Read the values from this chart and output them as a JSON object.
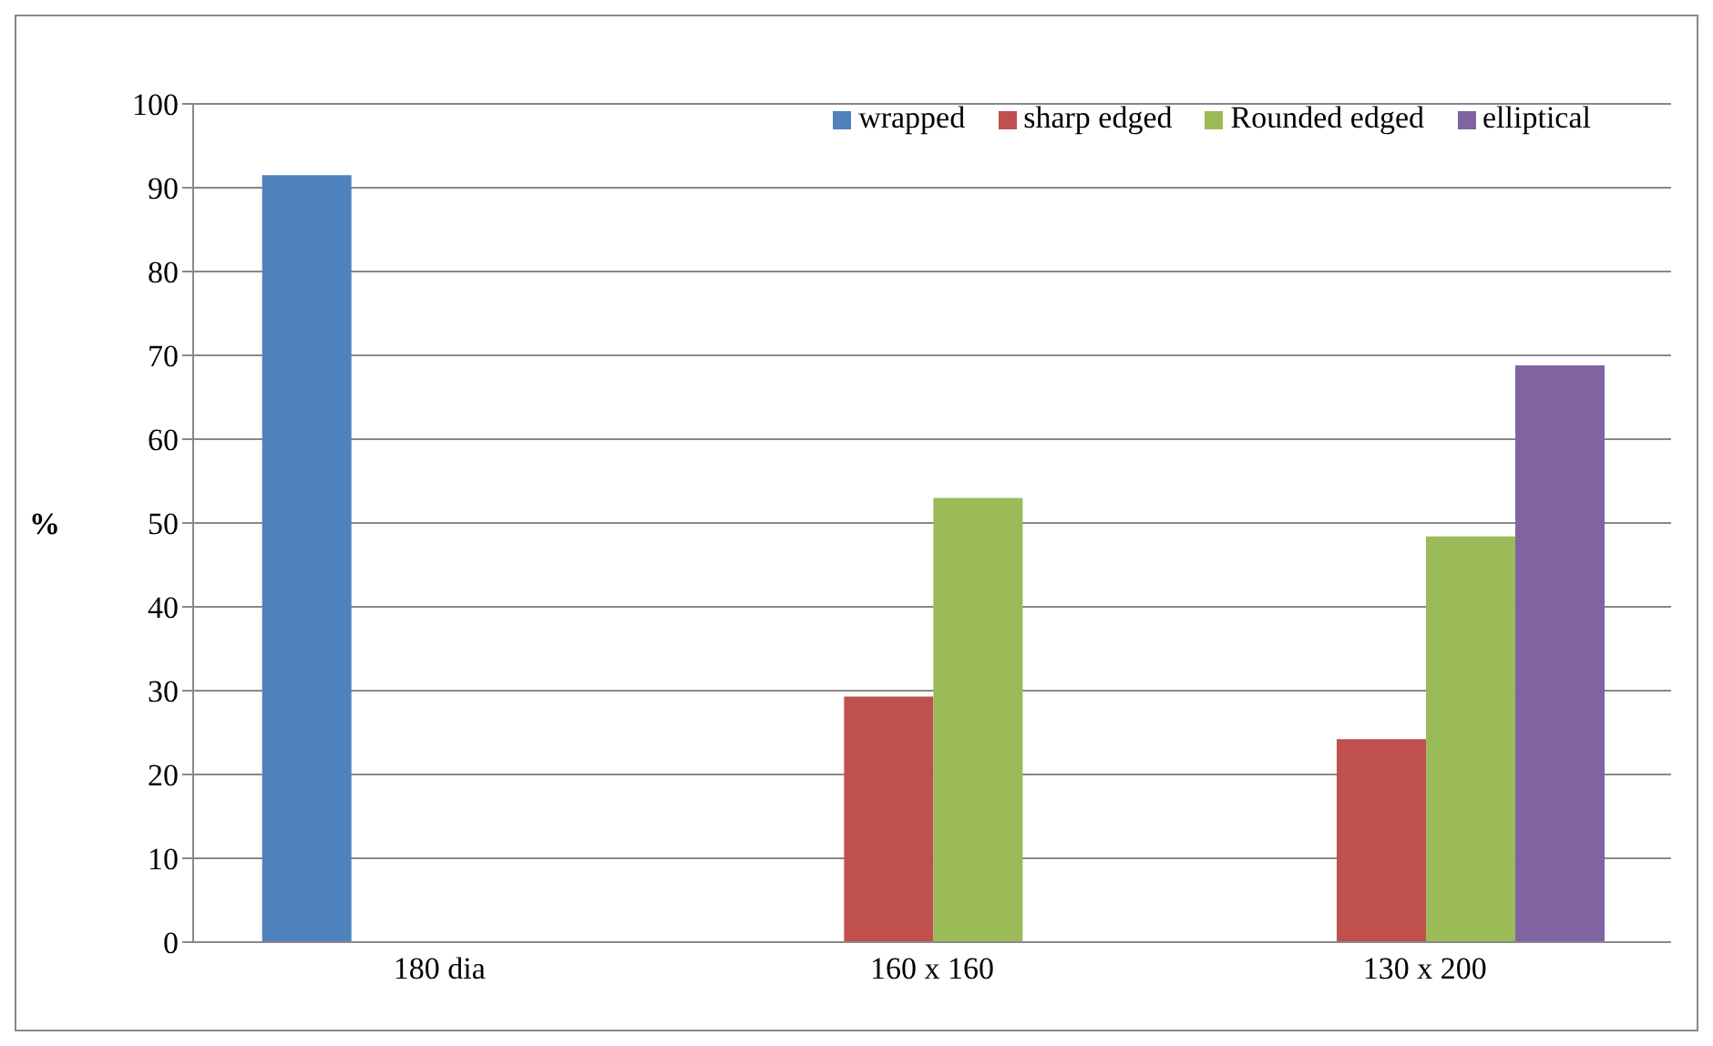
{
  "chart_data": {
    "type": "bar",
    "ylabel": "%",
    "categories": [
      "180 dia",
      "160 x 160",
      "130 x 200"
    ],
    "series": [
      {
        "name": "wrapped",
        "color": "#4f81bd",
        "values": [
          91.5,
          null,
          null
        ]
      },
      {
        "name": "sharp edged",
        "color": "#c0504d",
        "values": [
          null,
          29.3,
          24.2
        ]
      },
      {
        "name": "Rounded edged",
        "color": "#9bbb59",
        "values": [
          null,
          53,
          48.4
        ]
      },
      {
        "name": "elliptical",
        "color": "#8064a2",
        "values": [
          null,
          null,
          68.8
        ]
      }
    ],
    "ylim": [
      0,
      100
    ],
    "yticks": [
      0,
      10,
      20,
      30,
      40,
      50,
      60,
      70,
      80,
      90,
      100
    ],
    "grid": "y",
    "legend": "top right"
  }
}
